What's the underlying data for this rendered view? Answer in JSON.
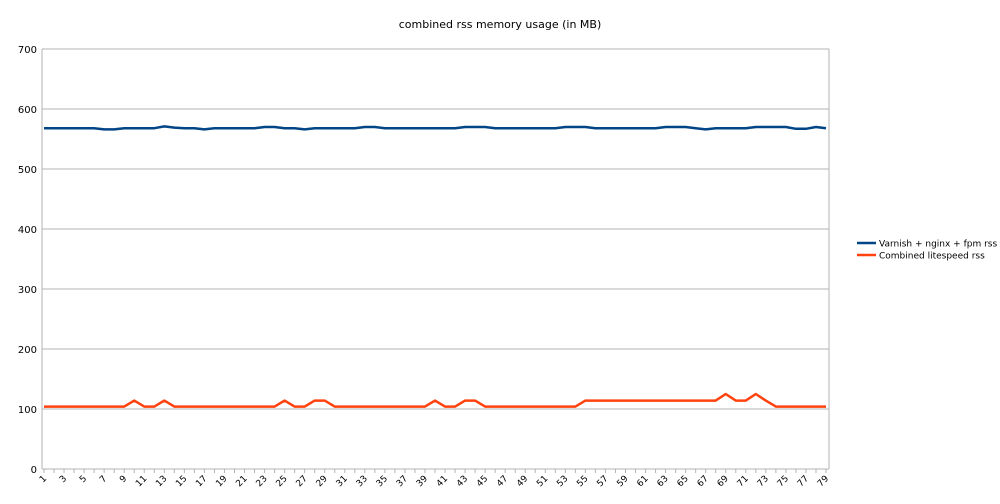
{
  "chart_data": {
    "type": "line",
    "title": "combined rss memory usage (in MB)",
    "xlabel": "",
    "ylabel": "",
    "x": [
      1,
      2,
      3,
      4,
      5,
      6,
      7,
      8,
      9,
      10,
      11,
      12,
      13,
      14,
      15,
      16,
      17,
      18,
      19,
      20,
      21,
      22,
      23,
      24,
      25,
      26,
      27,
      28,
      29,
      30,
      31,
      32,
      33,
      34,
      35,
      36,
      37,
      38,
      39,
      40,
      41,
      42,
      43,
      44,
      45,
      46,
      47,
      48,
      49,
      50,
      51,
      52,
      53,
      54,
      55,
      56,
      57,
      58,
      59,
      60,
      61,
      62,
      63,
      64,
      65,
      66,
      67,
      68,
      69,
      70,
      71,
      72,
      73,
      74,
      75,
      76,
      77,
      78,
      79
    ],
    "x_tick_labels": [
      "1",
      "3",
      "5",
      "7",
      "9",
      "11",
      "13",
      "15",
      "17",
      "19",
      "21",
      "23",
      "25",
      "27",
      "29",
      "31",
      "33",
      "35",
      "37",
      "39",
      "41",
      "43",
      "45",
      "47",
      "49",
      "51",
      "53",
      "55",
      "57",
      "59",
      "61",
      "63",
      "65",
      "67",
      "69",
      "71",
      "73",
      "75",
      "77",
      "79"
    ],
    "ylim": [
      0,
      700
    ],
    "y_ticks": [
      0,
      100,
      200,
      300,
      400,
      500,
      600,
      700
    ],
    "grid": "horizontal",
    "legend_position": "right",
    "series": [
      {
        "name": "Varnish + nginx + fpm rss",
        "color": "#004586",
        "values": [
          568,
          568,
          568,
          568,
          568,
          568,
          566,
          566,
          568,
          568,
          568,
          568,
          571,
          569,
          568,
          568,
          566,
          568,
          568,
          568,
          568,
          568,
          570,
          570,
          568,
          568,
          566,
          568,
          568,
          568,
          568,
          568,
          570,
          570,
          568,
          568,
          568,
          568,
          568,
          568,
          568,
          568,
          570,
          570,
          570,
          568,
          568,
          568,
          568,
          568,
          568,
          568,
          570,
          570,
          570,
          568,
          568,
          568,
          568,
          568,
          568,
          568,
          570,
          570,
          570,
          568,
          566,
          568,
          568,
          568,
          568,
          570,
          570,
          570,
          570,
          567,
          567,
          570,
          568
        ]
      },
      {
        "name": "Combined litespeed rss",
        "color": "#ff420e",
        "values": [
          104,
          104,
          104,
          104,
          104,
          104,
          104,
          104,
          104,
          114,
          104,
          104,
          114,
          104,
          104,
          104,
          104,
          104,
          104,
          104,
          104,
          104,
          104,
          104,
          114,
          104,
          104,
          114,
          114,
          104,
          104,
          104,
          104,
          104,
          104,
          104,
          104,
          104,
          104,
          114,
          104,
          104,
          114,
          114,
          104,
          104,
          104,
          104,
          104,
          104,
          104,
          104,
          104,
          104,
          114,
          114,
          114,
          114,
          114,
          114,
          114,
          114,
          114,
          114,
          114,
          114,
          114,
          114,
          125,
          114,
          114,
          125,
          114,
          104,
          104,
          104,
          104,
          104,
          104
        ]
      }
    ]
  }
}
